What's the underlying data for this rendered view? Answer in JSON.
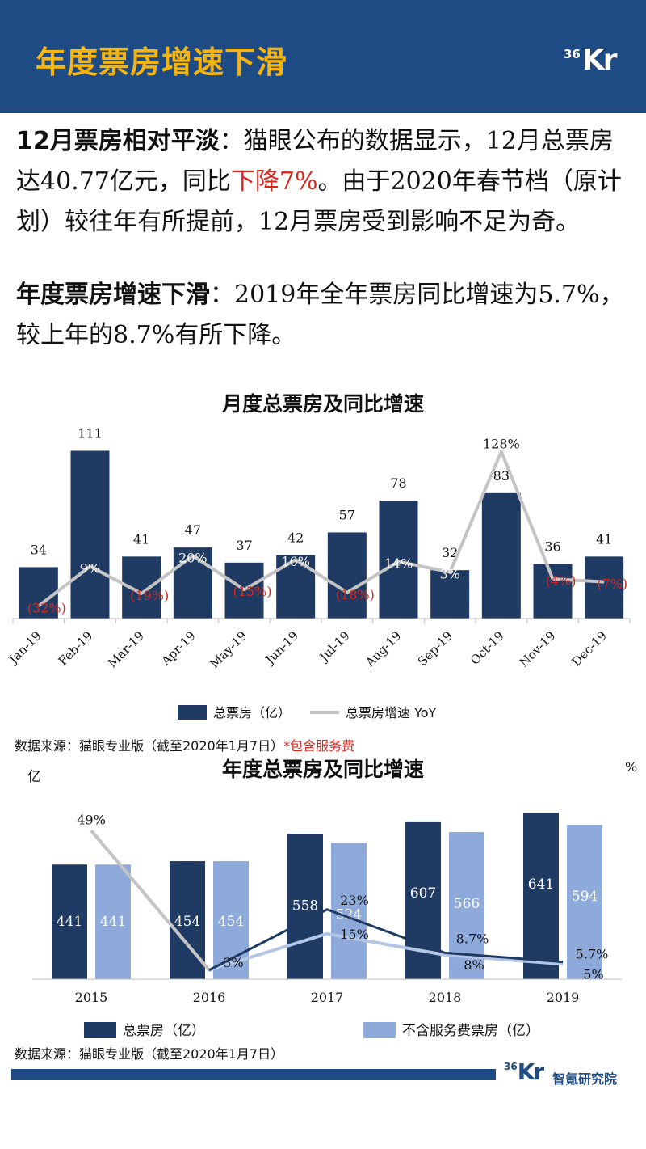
{
  "header": {
    "title": "年度票房增速下滑",
    "logo_sup": "36",
    "logo_main": "Kr"
  },
  "intro": {
    "p1_bold": "12月票房相对平淡",
    "p1_text": "：猫眼公布的数据显示，12月总票房达40.77亿元，同比",
    "p1_red": "下降7%",
    "p1_tail": "。由于2020年春节档（原计划）较往年有所提前，12月票房受到影响不足为奇。",
    "p2_bold": "年度票房增速下滑",
    "p2_text": "：2019年全年票房同比增速为5.7%，较上年的8.7%有所下降。"
  },
  "colors": {
    "bar_dark": "#1f3b63",
    "bar_light": "#8eaadb",
    "line_grey": "#c4c4c4",
    "negative": "#d9251d",
    "line_dark": "#1f3b63",
    "line_light": "#b4c6e7"
  },
  "chart_data": [
    {
      "type": "bar",
      "title": "月度总票房及同比增速",
      "categories": [
        "Jan-19",
        "Feb-19",
        "Mar-19",
        "Apr-19",
        "May-19",
        "Jun-19",
        "Jul-19",
        "Aug-19",
        "Sep-19",
        "Oct-19",
        "Nov-19",
        "Dec-19"
      ],
      "series": [
        {
          "name": "总票房（亿）",
          "type": "bar",
          "values": [
            34,
            111,
            41,
            47,
            37,
            42,
            57,
            78,
            32,
            83,
            36,
            41
          ]
        },
        {
          "name": "总票房增速 YoY",
          "type": "line",
          "values": [
            -32,
            9,
            -19,
            20,
            -15,
            16,
            -18,
            14,
            3,
            128,
            -4,
            -7
          ],
          "labels": [
            "(32%)",
            "9%",
            "(19%)",
            "20%",
            "(15%)",
            "16%",
            "(18%)",
            "14%",
            "3%",
            "128%",
            "(4%)",
            "(7%)"
          ]
        }
      ],
      "ylim_bar": [
        0,
        115
      ],
      "ylim_line": [
        -45,
        135
      ],
      "legend": "bottom"
    },
    {
      "type": "bar",
      "title": "年度总票房及同比增速",
      "left_unit": "亿",
      "right_unit": "%",
      "categories": [
        "2015",
        "2016",
        "2017",
        "2018",
        "2019"
      ],
      "series": [
        {
          "name": "总票房（亿）",
          "type": "bar",
          "values": [
            441,
            454,
            558,
            607,
            641
          ]
        },
        {
          "name": "不含服务费票房（亿）",
          "type": "bar",
          "values": [
            441,
            454,
            524,
            566,
            594
          ]
        },
        {
          "type": "line",
          "values": [
            49,
            3,
            23,
            8.7,
            5.7
          ],
          "labels": [
            "49%",
            "3%",
            "23%",
            "8.7%",
            "5.7%"
          ]
        },
        {
          "type": "line",
          "values": [
            49,
            3,
            15,
            8,
            5
          ],
          "labels": [
            "",
            "",
            "15%",
            "8%",
            "5%"
          ]
        }
      ],
      "ylim_bar": [
        0,
        700
      ],
      "ylim_line": [
        0,
        60
      ],
      "legend": "bottom"
    }
  ],
  "sources": {
    "monthly_prefix": "数据来源：猫眼专业版（截至2020年1月7日）",
    "monthly_note": "*包含服务费",
    "annual": "数据来源：猫眼专业版（截至2020年1月7日）"
  },
  "footer": {
    "logo_sup": "36",
    "logo_main": "Kr",
    "org": "智氪研究院"
  }
}
